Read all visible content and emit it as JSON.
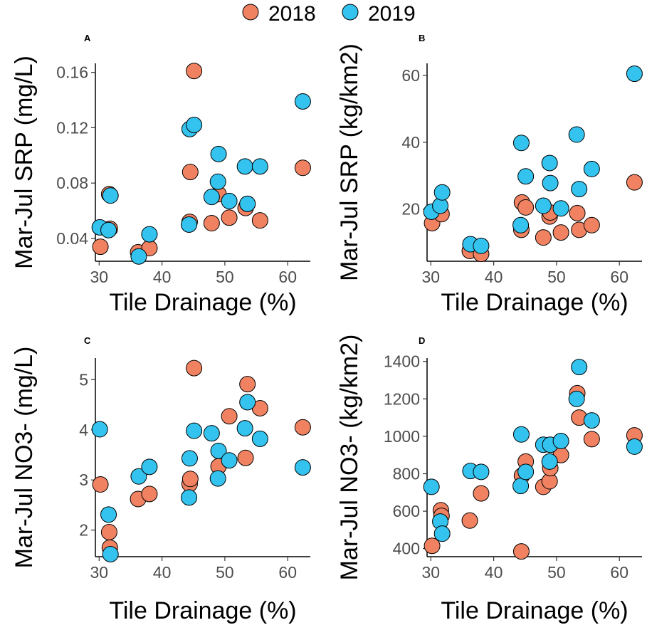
{
  "legend": {
    "position": "top-center",
    "entries": [
      {
        "label": "2018",
        "color": "#F08262"
      },
      {
        "label": "2019",
        "color": "#33C3EE"
      }
    ]
  },
  "chart_data": [
    {
      "type": "scatter",
      "panel_label": "A",
      "xlabel": "Tile Drainage (%)",
      "ylabel": "Mar-Jul SRP (mg/L)",
      "xlim": [
        29.4,
        63.6
      ],
      "ylim": [
        0.0235,
        0.1665
      ],
      "xticks": [
        30,
        40,
        50,
        60
      ],
      "yticks": [
        0.04,
        0.08,
        0.12,
        0.16
      ],
      "ytick_labels": [
        "0.04",
        "0.08",
        "0.12",
        "0.16"
      ],
      "series": [
        {
          "name": "2018",
          "x": [
            30.2,
            31.7,
            31.6,
            36.2,
            38.0,
            44.4,
            44.5,
            45.1,
            47.9,
            49.0,
            50.7,
            53.3,
            53.6,
            55.6,
            62.4
          ],
          "y": [
            0.034,
            0.047,
            0.072,
            0.03,
            0.033,
            0.052,
            0.088,
            0.161,
            0.051,
            0.072,
            0.055,
            0.062,
            0.065,
            0.053,
            0.091
          ]
        },
        {
          "name": "2019",
          "x": [
            30.1,
            31.5,
            31.8,
            36.3,
            38.0,
            44.3,
            44.4,
            45.1,
            47.9,
            48.9,
            49.0,
            50.7,
            53.2,
            53.6,
            55.6,
            62.4
          ],
          "y": [
            0.048,
            0.046,
            0.071,
            0.027,
            0.043,
            0.05,
            0.119,
            0.122,
            0.07,
            0.081,
            0.101,
            0.067,
            0.092,
            0.065,
            0.092,
            0.139
          ]
        }
      ]
    },
    {
      "type": "scatter",
      "panel_label": "B",
      "xlabel": "Tile Drainage (%)",
      "ylabel": "Mar-Jul SRP (kg/km2)",
      "xlim": [
        29.4,
        63.6
      ],
      "ylim": [
        4.4,
        63.6
      ],
      "xticks": [
        30,
        40,
        50,
        60
      ],
      "yticks": [
        20,
        40,
        60
      ],
      "ytick_labels": [
        "20",
        "40",
        "60"
      ],
      "series": [
        {
          "name": "2018",
          "x": [
            30.2,
            31.7,
            36.2,
            38.0,
            44.4,
            44.5,
            45.1,
            47.9,
            48.9,
            49.0,
            50.7,
            53.3,
            53.6,
            55.6,
            62.4
          ],
          "y": [
            15.8,
            18.5,
            7.5,
            6.6,
            13.8,
            22.0,
            20.5,
            11.5,
            17.8,
            19.0,
            13.0,
            18.8,
            13.8,
            15.2,
            28.0
          ]
        },
        {
          "name": "2019",
          "x": [
            30.1,
            31.5,
            31.8,
            36.3,
            38.0,
            44.3,
            44.4,
            45.1,
            47.9,
            48.9,
            49.0,
            50.7,
            53.2,
            53.6,
            55.6,
            62.4
          ],
          "y": [
            19.2,
            21.0,
            25.0,
            9.5,
            9.0,
            15.2,
            39.8,
            29.8,
            21.0,
            33.8,
            27.8,
            20.2,
            42.3,
            26.0,
            32.0,
            60.5
          ]
        }
      ]
    },
    {
      "type": "scatter",
      "panel_label": "C",
      "xlabel": "Tile Drainage (%)",
      "ylabel": "Mar-Jul NO3- (mg/L)",
      "xlim": [
        29.4,
        63.6
      ],
      "ylim": [
        1.47,
        5.43
      ],
      "xticks": [
        30,
        40,
        50,
        60
      ],
      "yticks": [
        2,
        3,
        4,
        5
      ],
      "ytick_labels": [
        "2",
        "3",
        "4",
        "5"
      ],
      "series": [
        {
          "name": "2018",
          "x": [
            30.2,
            31.6,
            31.7,
            36.2,
            38.0,
            44.4,
            44.5,
            45.1,
            49.0,
            50.7,
            53.3,
            53.6,
            55.6,
            62.4
          ],
          "y": [
            2.91,
            1.96,
            1.65,
            2.62,
            2.72,
            2.92,
            3.02,
            5.23,
            3.27,
            4.27,
            3.44,
            4.91,
            4.43,
            4.05
          ]
        },
        {
          "name": "2019",
          "x": [
            30.1,
            31.5,
            31.8,
            36.3,
            38.0,
            44.3,
            44.4,
            45.1,
            47.9,
            48.9,
            49.0,
            50.7,
            53.2,
            53.6,
            55.6,
            62.4
          ],
          "y": [
            4.01,
            2.31,
            1.52,
            3.07,
            3.26,
            2.65,
            3.43,
            3.98,
            3.93,
            3.03,
            3.58,
            3.39,
            4.03,
            4.55,
            3.82,
            3.25
          ]
        }
      ]
    },
    {
      "type": "scatter",
      "panel_label": "D",
      "xlabel": "Tile Drainage (%)",
      "ylabel": "Mar-Jul NO3- (kg/km2)",
      "xlim": [
        29.4,
        63.6
      ],
      "ylim": [
        357,
        1418
      ],
      "xticks": [
        30,
        40,
        50,
        60
      ],
      "yticks": [
        400,
        600,
        800,
        1000,
        1200,
        1400
      ],
      "ytick_labels": [
        "400",
        "600",
        "800",
        "1000",
        "1200",
        "1400"
      ],
      "series": [
        {
          "name": "2018",
          "x": [
            30.2,
            31.6,
            31.7,
            36.2,
            38.0,
            44.4,
            44.5,
            45.1,
            47.9,
            48.9,
            49.0,
            50.7,
            53.3,
            53.6,
            55.6,
            62.4
          ],
          "y": [
            415,
            605,
            575,
            550,
            695,
            385,
            790,
            865,
            730,
            760,
            830,
            900,
            1230,
            1100,
            985,
            1005
          ]
        },
        {
          "name": "2019",
          "x": [
            30.1,
            31.5,
            31.8,
            36.3,
            38.0,
            44.3,
            44.4,
            45.1,
            47.9,
            48.9,
            49.0,
            50.7,
            53.2,
            53.6,
            55.6,
            62.4
          ],
          "y": [
            730,
            545,
            480,
            815,
            810,
            735,
            1010,
            810,
            955,
            865,
            955,
            975,
            1200,
            1370,
            1085,
            945
          ]
        }
      ]
    }
  ]
}
